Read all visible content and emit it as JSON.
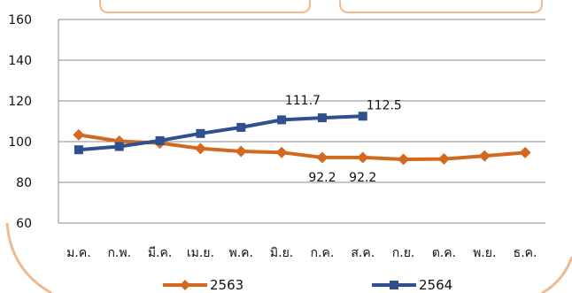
{
  "chart_data": {
    "type": "line",
    "categories": [
      "ม.ค.",
      "ก.พ.",
      "มี.ค.",
      "เม.ย.",
      "พ.ค.",
      "มิ.ย.",
      "ก.ค.",
      "ส.ค.",
      "ก.ย.",
      "ต.ค.",
      "พ.ย.",
      "ธ.ค."
    ],
    "ylim": [
      60,
      160
    ],
    "yticks": [
      60,
      80,
      100,
      120,
      140,
      160
    ],
    "grid": true,
    "legend_position": "bottom",
    "series": [
      {
        "name": "2563",
        "color": "#d2691e",
        "marker": "diamond",
        "values": [
          103.3,
          100.2,
          99.3,
          96.6,
          95.2,
          94.7,
          92.2,
          92.2,
          91.3,
          91.5,
          93.0,
          94.6
        ],
        "labels": [
          null,
          null,
          null,
          null,
          null,
          null,
          "92.2",
          "92.2",
          null,
          null,
          null,
          null
        ]
      },
      {
        "name": "2564",
        "color": "#2f4f8f",
        "marker": "square",
        "values": [
          96.0,
          97.6,
          100.5,
          104.0,
          107.0,
          110.7,
          111.7,
          112.5,
          null,
          null,
          null,
          null
        ],
        "labels": [
          null,
          null,
          null,
          null,
          null,
          null,
          "111.7",
          "112.5",
          null,
          null,
          null,
          null
        ]
      }
    ]
  },
  "decor": {
    "frame_color": "#f0b98e"
  }
}
